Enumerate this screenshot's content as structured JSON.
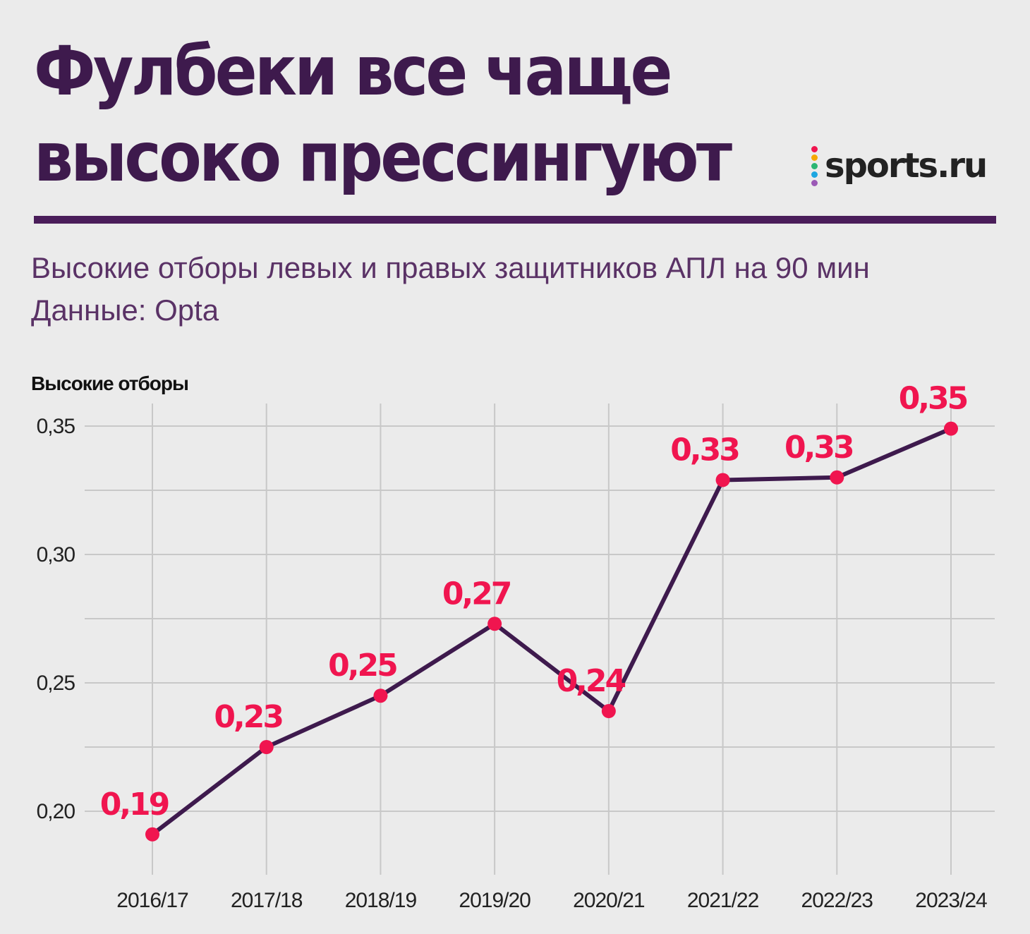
{
  "header": {
    "title_line1": "Фулбеки все чаще",
    "title_line2": "высоко прессингуют",
    "logo_text": "sports.ru",
    "logo_dot_colors": [
      "#f0154f",
      "#f6a800",
      "#2bb673",
      "#1ea7e1",
      "#9b59b6"
    ],
    "subtitle_line1": "Высокие отборы левых и правых защитников АПЛ на 90 мин",
    "subtitle_line2": "Данные: Opta"
  },
  "colors": {
    "background": "#ebebeb",
    "title": "#3e1a4d",
    "line": "#3e1a4d",
    "point": "#f0154f",
    "grid": "#c8c8c8"
  },
  "chart_data": {
    "type": "line",
    "ylabel": "Высокие отборы",
    "xlabel": "",
    "categories": [
      "2016/17",
      "2017/18",
      "2018/19",
      "2019/20",
      "2020/21",
      "2021/22",
      "2022/23",
      "2023/24"
    ],
    "series": [
      {
        "values": [
          0.191,
          0.225,
          0.245,
          0.273,
          0.239,
          0.329,
          0.33,
          0.349
        ]
      }
    ],
    "data_labels": [
      "0,19",
      "0,23",
      "0,25",
      "0,27",
      "0,24",
      "0,33",
      "0,33",
      "0,35"
    ],
    "y_ticks": [
      0.2,
      0.25,
      0.3,
      0.35
    ],
    "y_tick_labels": [
      "0,20",
      "0,25",
      "0,30",
      "0,35"
    ],
    "ylim": [
      0.18,
      0.35
    ],
    "grid": true
  }
}
